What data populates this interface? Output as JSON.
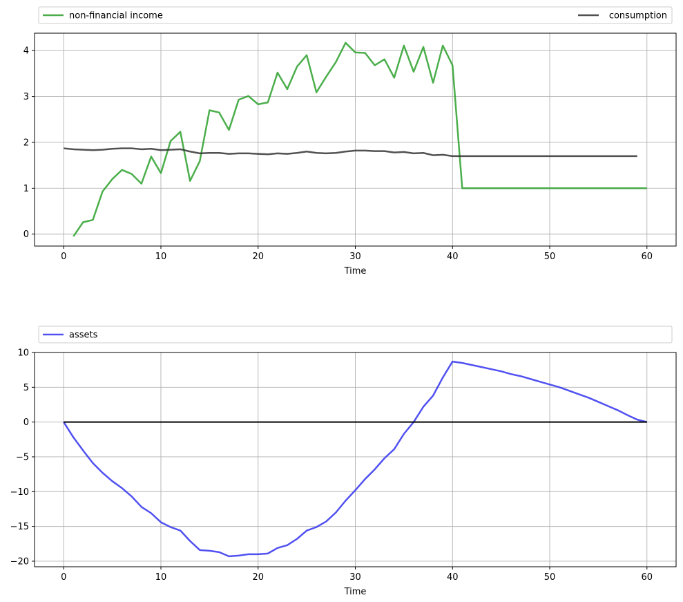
{
  "chart_data": [
    {
      "type": "line",
      "xlabel": "Time",
      "ylabel": "",
      "xlim": [
        -3,
        63
      ],
      "ylim": [
        -0.26,
        4.38
      ],
      "xticks": [
        0,
        10,
        20,
        30,
        40,
        50,
        60
      ],
      "yticks": [
        0,
        1,
        2,
        3,
        4
      ],
      "grid": true,
      "legend": {
        "placement": "above-axes",
        "mode": "expand"
      },
      "series": [
        {
          "name": "non-financial income",
          "color": "#2ca02c",
          "x": [
            1,
            2,
            3,
            4,
            5,
            6,
            7,
            8,
            9,
            10,
            11,
            12,
            13,
            14,
            15,
            16,
            17,
            18,
            19,
            20,
            21,
            22,
            23,
            24,
            25,
            26,
            27,
            28,
            29,
            30,
            31,
            32,
            33,
            34,
            35,
            36,
            37,
            38,
            39,
            40,
            41,
            42,
            43,
            44,
            45,
            46,
            47,
            48,
            49,
            50,
            51,
            52,
            53,
            54,
            55,
            56,
            57,
            58,
            59,
            60
          ],
          "y": [
            -0.05,
            0.26,
            0.31,
            0.93,
            1.2,
            1.4,
            1.31,
            1.1,
            1.69,
            1.33,
            2.03,
            2.23,
            1.16,
            1.59,
            2.7,
            2.65,
            2.27,
            2.93,
            3.01,
            2.83,
            2.87,
            3.52,
            3.16,
            3.65,
            3.9,
            3.09,
            3.43,
            3.75,
            4.17,
            3.96,
            3.95,
            3.68,
            3.81,
            3.41,
            4.11,
            3.54,
            4.08,
            3.3,
            4.11,
            3.68,
            1.0,
            1.0,
            1.0,
            1.0,
            1.0,
            1.0,
            1.0,
            1.0,
            1.0,
            1.0,
            1.0,
            1.0,
            1.0,
            1.0,
            1.0,
            1.0,
            1.0,
            1.0,
            1.0,
            1.0
          ]
        },
        {
          "name": "consumption",
          "color": "#333333",
          "x": [
            0,
            1,
            2,
            3,
            4,
            5,
            6,
            7,
            8,
            9,
            10,
            11,
            12,
            13,
            14,
            15,
            16,
            17,
            18,
            19,
            20,
            21,
            22,
            23,
            24,
            25,
            26,
            27,
            28,
            29,
            30,
            31,
            32,
            33,
            34,
            35,
            36,
            37,
            38,
            39,
            40,
            41,
            42,
            43,
            44,
            45,
            46,
            47,
            48,
            49,
            50,
            51,
            52,
            53,
            54,
            55,
            56,
            57,
            58,
            59
          ],
          "y": [
            1.87,
            1.85,
            1.84,
            1.83,
            1.84,
            1.86,
            1.87,
            1.87,
            1.85,
            1.86,
            1.83,
            1.84,
            1.85,
            1.8,
            1.76,
            1.77,
            1.77,
            1.75,
            1.76,
            1.76,
            1.75,
            1.74,
            1.76,
            1.75,
            1.77,
            1.8,
            1.77,
            1.76,
            1.77,
            1.8,
            1.82,
            1.82,
            1.81,
            1.81,
            1.78,
            1.79,
            1.76,
            1.77,
            1.72,
            1.73,
            1.7,
            1.7,
            1.7,
            1.7,
            1.7,
            1.7,
            1.7,
            1.7,
            1.7,
            1.7,
            1.7,
            1.7,
            1.7,
            1.7,
            1.7,
            1.7,
            1.7,
            1.7,
            1.7,
            1.7
          ]
        }
      ]
    },
    {
      "type": "line",
      "xlabel": "Time",
      "ylabel": "",
      "xlim": [
        -3,
        63
      ],
      "ylim": [
        -20.8,
        10
      ],
      "xticks": [
        0,
        10,
        20,
        30,
        40,
        50,
        60
      ],
      "yticks": [
        -20,
        -15,
        -10,
        -5,
        0,
        5,
        10
      ],
      "grid": true,
      "legend": {
        "placement": "above-axes",
        "mode": "expand"
      },
      "series": [
        {
          "name": "assets",
          "color": "#3333ee",
          "x": [
            0,
            1,
            2,
            3,
            4,
            5,
            6,
            7,
            8,
            9,
            10,
            11,
            12,
            13,
            14,
            15,
            16,
            17,
            18,
            19,
            20,
            21,
            22,
            23,
            24,
            25,
            26,
            27,
            28,
            29,
            30,
            31,
            32,
            33,
            34,
            35,
            36,
            37,
            38,
            39,
            40,
            41,
            42,
            43,
            44,
            45,
            46,
            47,
            48,
            49,
            50,
            51,
            52,
            53,
            54,
            55,
            56,
            57,
            58,
            59,
            60
          ],
          "y": [
            0,
            -2.2,
            -4.1,
            -5.9,
            -7.3,
            -8.5,
            -9.5,
            -10.7,
            -12.2,
            -13.1,
            -14.4,
            -15.1,
            -15.6,
            -17.1,
            -18.4,
            -18.5,
            -18.7,
            -19.3,
            -19.2,
            -19.0,
            -19.0,
            -18.9,
            -18.1,
            -17.7,
            -16.8,
            -15.6,
            -15.1,
            -14.3,
            -13.0,
            -11.3,
            -9.8,
            -8.2,
            -6.8,
            -5.2,
            -3.9,
            -1.7,
            0.0,
            2.2,
            3.8,
            6.4,
            8.7,
            8.5,
            8.2,
            7.9,
            7.6,
            7.3,
            6.9,
            6.6,
            6.2,
            5.8,
            5.4,
            5.0,
            4.5,
            4.0,
            3.5,
            2.9,
            2.3,
            1.7,
            1.0,
            0.35,
            0.0
          ]
        },
        {
          "name": "",
          "color": "#000000",
          "x": [
            0,
            60
          ],
          "y": [
            0,
            0
          ]
        }
      ]
    }
  ]
}
